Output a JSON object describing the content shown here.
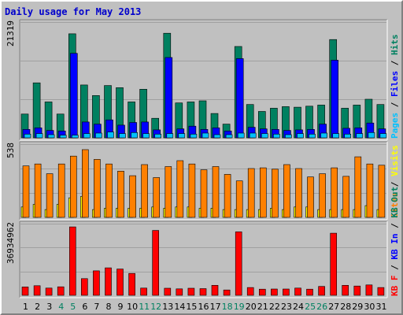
{
  "chart_data": {
    "title": "Daily usage for May 2013",
    "days": [
      1,
      2,
      3,
      4,
      5,
      6,
      7,
      8,
      9,
      10,
      11,
      12,
      13,
      14,
      15,
      16,
      17,
      18,
      19,
      20,
      21,
      22,
      23,
      24,
      25,
      26,
      27,
      28,
      29,
      30,
      31
    ],
    "weekend_days": [
      4,
      5,
      11,
      12,
      18,
      19,
      25,
      26
    ],
    "panels": [
      {
        "type": "bar",
        "max_label": "21319",
        "ymax": 21319,
        "legend": [
          {
            "text": "Pages",
            "color": "#00c0ff"
          },
          {
            "text": " / ",
            "color": "#000000"
          },
          {
            "text": "Files",
            "color": "#0000ff"
          },
          {
            "text": " / ",
            "color": "#000000"
          },
          {
            "text": "Hits",
            "color": "#008060"
          }
        ],
        "series": [
          {
            "name": "Hits",
            "color": "#008060",
            "values": [
              4500,
              10400,
              6800,
              4500,
              19700,
              10000,
              8000,
              9900,
              9500,
              6800,
              9200,
              3700,
              19800,
              6600,
              6800,
              7000,
              4600,
              2600,
              17300,
              6300,
              5000,
              5600,
              5900,
              5800,
              6000,
              6200,
              18600,
              5600,
              6200,
              7300,
              6300
            ]
          },
          {
            "name": "Files",
            "color": "#0000ff",
            "values": [
              1600,
              1900,
              1400,
              1300,
              16000,
              3000,
              2600,
              3400,
              2400,
              2900,
              3000,
              1500,
              15200,
              1700,
              2200,
              1600,
              1900,
              1300,
              15000,
              2000,
              1700,
              1600,
              1400,
              1500,
              1600,
              2600,
              14700,
              1800,
              1900,
              2800,
              1700
            ]
          },
          {
            "name": "Pages",
            "color": "#00c0ff",
            "values": [
              700,
              800,
              600,
              500,
              500,
              800,
              900,
              1100,
              800,
              1000,
              800,
              700,
              800,
              800,
              700,
              900,
              600,
              600,
              900,
              900,
              800,
              700,
              600,
              800,
              700,
              900,
              800,
              700,
              800,
              1000,
              800
            ]
          }
        ]
      },
      {
        "type": "bar",
        "max_label": "538",
        "ymax": 538,
        "legend": [
          {
            "text": "Sites",
            "color": "#ff8000"
          },
          {
            "text": " / ",
            "color": "#000000"
          },
          {
            "text": "Visits",
            "color": "#ffff00"
          }
        ],
        "series": [
          {
            "name": "Visits",
            "color": "#ffff00",
            "values": [
              80,
              100,
              60,
              100,
              150,
              160,
              60,
              70,
              70,
              70,
              70,
              80,
              70,
              80,
              80,
              70,
              70,
              60,
              60,
              60,
              60,
              70,
              60,
              80,
              80,
              60,
              60,
              60,
              60,
              90,
              60
            ]
          },
          {
            "name": "Sites",
            "color": "#ff8000",
            "values": [
              395,
              410,
              335,
              410,
              470,
              520,
              445,
              410,
              355,
              320,
              405,
              305,
              390,
              435,
              410,
              365,
              390,
              330,
              280,
              375,
              380,
              370,
              405,
              375,
              310,
              335,
              380,
              315,
              465,
              410,
              400
            ]
          }
        ]
      },
      {
        "type": "bar",
        "max_label": "36934962",
        "ymax": 36934962,
        "legend": [
          {
            "text": "KB F",
            "color": "#ff0000"
          },
          {
            "text": " / ",
            "color": "#000000"
          },
          {
            "text": "KB In",
            "color": "#0000ff"
          },
          {
            "text": " / ",
            "color": "#000000"
          },
          {
            "text": "KB Out",
            "color": "#008060"
          }
        ],
        "series": [
          {
            "name": "KB F",
            "color": "#ff0000",
            "values": [
              4500000,
              5200000,
              3900000,
              4600000,
              36900000,
              9000000,
              13200000,
              14800000,
              14200000,
              11800000,
              3900000,
              35000000,
              3800000,
              3500000,
              3800000,
              3600000,
              5400000,
              2900000,
              34200000,
              4200000,
              3300000,
              3400000,
              3400000,
              3900000,
              3300000,
              4800000,
              33500000,
              5400000,
              5000000,
              5600000,
              4200000
            ]
          }
        ]
      }
    ],
    "x_tick_colors": {
      "weekday": "#000000",
      "weekend": "#008060"
    }
  }
}
